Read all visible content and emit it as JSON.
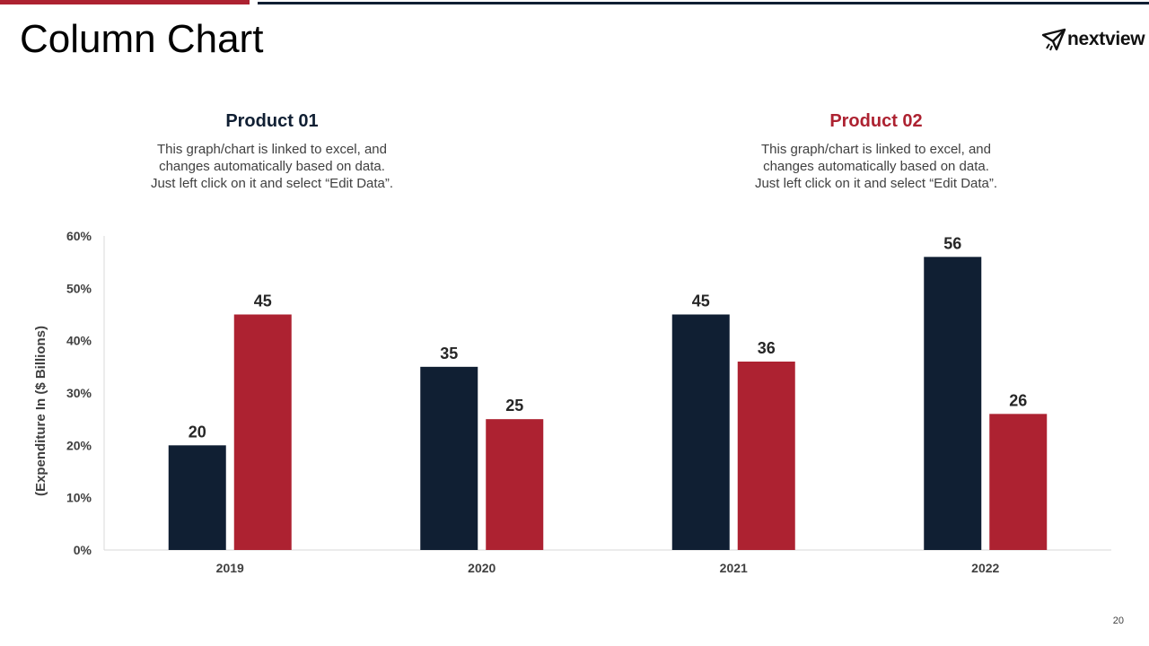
{
  "slide": {
    "title": "Column Chart",
    "page_number": "20"
  },
  "logo": {
    "text": "nextview"
  },
  "colors": {
    "navy": "#101f33",
    "red": "#ad2231",
    "axis_text": "#404040",
    "axis_line": "#d9d9d9"
  },
  "products": [
    {
      "title": "Product 01",
      "desc_lines": [
        "This graph/chart is linked to excel, and",
        "changes automatically based on data.",
        "Just left click on it and select “Edit Data”."
      ]
    },
    {
      "title": "Product 02",
      "desc_lines": [
        "This graph/chart is linked to excel, and",
        "changes automatically based on data.",
        "Just left click on it and select “Edit Data”."
      ]
    }
  ],
  "chart_data": {
    "type": "bar",
    "title": "",
    "xlabel": "",
    "ylabel": "(Expenditure In ($ Billions)",
    "categories": [
      "2019",
      "2020",
      "2021",
      "2022"
    ],
    "series": [
      {
        "name": "Product 01",
        "color": "#101f33",
        "values": [
          20,
          35,
          45,
          56
        ]
      },
      {
        "name": "Product 02",
        "color": "#ad2231",
        "values": [
          45,
          25,
          36,
          26
        ]
      }
    ],
    "ylim": [
      0,
      60
    ],
    "yticks": [
      0,
      10,
      20,
      30,
      40,
      50,
      60
    ],
    "ytick_labels": [
      "0%",
      "10%",
      "20%",
      "30%",
      "40%",
      "50%",
      "60%"
    ],
    "data_labels": true,
    "grid": false,
    "legend": "none"
  }
}
